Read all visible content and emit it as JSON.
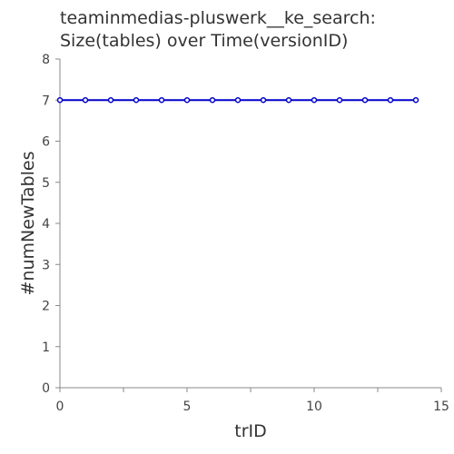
{
  "chart_data": {
    "type": "line",
    "title": [
      "teaminmedias-pluswerk__ke_search:",
      "Size(tables) over Time(versionID)"
    ],
    "xlabel": "trID",
    "ylabel": "#numNewTables",
    "xlim": [
      0,
      15
    ],
    "ylim": [
      0,
      8
    ],
    "x_ticks": [
      0,
      5,
      10,
      15
    ],
    "x_minor_ticks": [
      0,
      2.5,
      5,
      7.5,
      10,
      12.5,
      15
    ],
    "y_ticks": [
      0,
      1,
      2,
      3,
      4,
      5,
      6,
      7,
      8
    ],
    "grid": false,
    "series": [
      {
        "color": "#0000cc",
        "x": [
          0,
          1,
          2,
          3,
          4,
          5,
          6,
          7,
          8,
          9,
          10,
          11,
          12,
          13,
          14
        ],
        "y": [
          7,
          7,
          7,
          7,
          7,
          7,
          7,
          7,
          7,
          7,
          7,
          7,
          7,
          7,
          7
        ]
      }
    ]
  }
}
